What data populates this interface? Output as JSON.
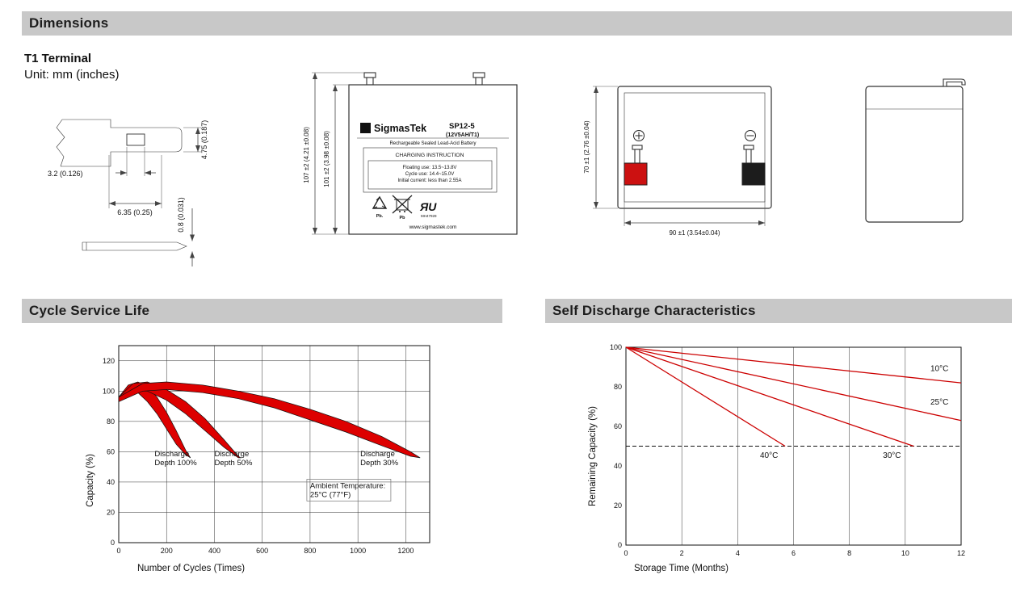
{
  "sections": {
    "dimensions": {
      "title": "Dimensions",
      "terminal_type": "T1 Terminal",
      "unit_note": "Unit: mm (inches)"
    },
    "cycle": {
      "title": "Cycle Service Life"
    },
    "discharge": {
      "title": "Self Discharge Characteristics"
    }
  },
  "terminal_detail": {
    "dim_hole": "3.2 (0.126)",
    "dim_tab_width": "6.35 (0.25)",
    "dim_tab_height": "4.75 (0.187)",
    "dim_thickness": "0.8 (0.031)"
  },
  "front_view": {
    "dim_total_height": "107 ±2 (4.21 ±0.08)",
    "dim_case_height": "101 ±2 (3.98 ±0.08)",
    "logo_sigma": "Σ",
    "brand": "SigmasTek",
    "model": "SP12-5",
    "rating": "(12V5AH/T1)",
    "battery_type": "Rechargeable Sealed Lead-Acid Battery",
    "charging_title": "CHARGING INSTRUCTION",
    "charging_line1": "Floating use: 13.5~13.8V",
    "charging_line2": "Cycle use: 14.4~15.0V",
    "charging_line3": "Initial current: less than 2.55A",
    "pb_recycle_label": "Pb.",
    "pb_bin_label": "Pb",
    "ul_mark": "ЯU",
    "ul_code": "MH47929",
    "website": "www.sigmastek.com"
  },
  "rear_view": {
    "dim_height": "70 ±1 (2.76 ±0.04)",
    "dim_width": "90 ±1 (3.54±0.04)"
  },
  "chart_data": [
    {
      "type": "area",
      "title": "Cycle Service Life",
      "xlabel": "Number of Cycles (Times)",
      "ylabel": "Capacity (%)",
      "xlim": [
        0,
        1300
      ],
      "ylim": [
        0,
        130
      ],
      "xticks": [
        0,
        200,
        400,
        600,
        800,
        1000,
        1200
      ],
      "yticks": [
        0,
        20,
        40,
        60,
        80,
        100,
        120
      ],
      "grid_x": [
        200,
        400,
        600,
        800,
        1000,
        1200
      ],
      "grid_y": [
        20,
        40,
        60,
        80,
        100,
        120
      ],
      "grid_on": true,
      "legend_position": "none",
      "fill_color": "#dd0000",
      "bands": [
        {
          "name": "Discharge Depth 100%",
          "upper": [
            [
              0,
              96
            ],
            [
              40,
              104
            ],
            [
              80,
              106
            ],
            [
              120,
              103
            ],
            [
              160,
              96
            ],
            [
              200,
              86
            ],
            [
              240,
              74
            ],
            [
              280,
              61
            ],
            [
              300,
              56
            ]
          ],
          "lower": [
            [
              0,
              93
            ],
            [
              40,
              99
            ],
            [
              80,
              99
            ],
            [
              120,
              93
            ],
            [
              160,
              85
            ],
            [
              200,
              75
            ],
            [
              240,
              65
            ],
            [
              280,
              58
            ],
            [
              300,
              56
            ]
          ]
        },
        {
          "name": "Discharge Depth 50%",
          "upper": [
            [
              0,
              96
            ],
            [
              60,
              105
            ],
            [
              120,
              106
            ],
            [
              200,
              101
            ],
            [
              280,
              93
            ],
            [
              360,
              82
            ],
            [
              440,
              68
            ],
            [
              500,
              57
            ],
            [
              510,
              56
            ]
          ],
          "lower": [
            [
              0,
              93
            ],
            [
              60,
              100
            ],
            [
              120,
              100
            ],
            [
              200,
              94
            ],
            [
              280,
              85
            ],
            [
              360,
              74
            ],
            [
              440,
              63
            ],
            [
              500,
              56
            ],
            [
              510,
              56
            ]
          ]
        },
        {
          "name": "Discharge Depth 30%",
          "upper": [
            [
              0,
              96
            ],
            [
              100,
              105
            ],
            [
              200,
              106
            ],
            [
              350,
              104
            ],
            [
              500,
              100
            ],
            [
              650,
              95
            ],
            [
              800,
              88
            ],
            [
              950,
              80
            ],
            [
              1100,
              70
            ],
            [
              1220,
              60
            ],
            [
              1260,
              56
            ]
          ],
          "lower": [
            [
              0,
              93
            ],
            [
              100,
              100
            ],
            [
              200,
              101
            ],
            [
              350,
              99
            ],
            [
              500,
              95
            ],
            [
              650,
              89
            ],
            [
              800,
              81
            ],
            [
              950,
              73
            ],
            [
              1100,
              64
            ],
            [
              1220,
              57
            ],
            [
              1260,
              56
            ]
          ]
        }
      ],
      "annotations": [
        {
          "x": 150,
          "y": 57,
          "lines": [
            "Discharge",
            "Depth 100%"
          ]
        },
        {
          "x": 400,
          "y": 57,
          "lines": [
            "Discharge",
            "Depth 50%"
          ]
        },
        {
          "x": 1010,
          "y": 57,
          "lines": [
            "Discharge",
            "Depth 30%"
          ]
        },
        {
          "x": 800,
          "y": 36,
          "lines": [
            "Ambient Temperature:",
            "25°C (77°F)"
          ],
          "box": true
        }
      ]
    },
    {
      "type": "line",
      "title": "Self Discharge Characteristics",
      "xlabel": "Storage Time (Months)",
      "ylabel": "Remaining Capacity (%)",
      "xlim": [
        0,
        12
      ],
      "ylim": [
        0,
        100
      ],
      "xticks": [
        0,
        2,
        4,
        6,
        8,
        10,
        12
      ],
      "yticks": [
        0,
        20,
        40,
        60,
        80,
        100
      ],
      "grid_x": [
        2,
        4,
        6,
        8,
        10
      ],
      "grid_y": [],
      "grid_on": true,
      "legend_position": "inline",
      "line_color": "#cc0000",
      "dashed_y": 50,
      "lines": [
        {
          "name": "10°C",
          "points": [
            [
              0,
              100
            ],
            [
              12,
              82
            ]
          ]
        },
        {
          "name": "25°C",
          "points": [
            [
              0,
              100
            ],
            [
              12,
              63
            ]
          ]
        },
        {
          "name": "30°C",
          "points": [
            [
              0,
              100
            ],
            [
              10.3,
              50
            ]
          ]
        },
        {
          "name": "40°C",
          "points": [
            [
              0,
              100
            ],
            [
              5.7,
              50
            ]
          ]
        }
      ],
      "annotations": [
        {
          "x": 10.9,
          "y": 88,
          "lines": [
            "10°C"
          ]
        },
        {
          "x": 10.9,
          "y": 71,
          "lines": [
            "25°C"
          ]
        },
        {
          "x": 9.2,
          "y": 44,
          "lines": [
            "30°C"
          ]
        },
        {
          "x": 4.8,
          "y": 44,
          "lines": [
            "40°C"
          ]
        }
      ]
    }
  ]
}
